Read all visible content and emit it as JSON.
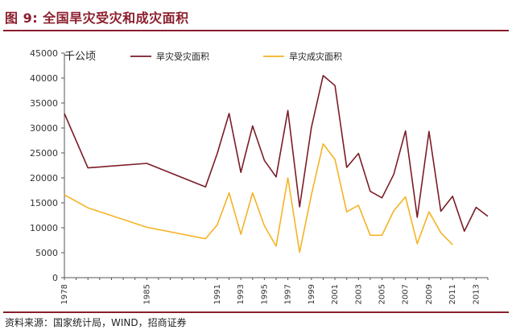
{
  "figure": {
    "title": "图 9:  全国旱灾受灾和成灾面积",
    "source": "资料来源：国家统计局，WIND，招商证券",
    "line_color": "#8b1e2d"
  },
  "chart_data": {
    "type": "line",
    "unit_label": "千公顷",
    "ylim": [
      0,
      45000
    ],
    "yticks": [
      0,
      5000,
      10000,
      15000,
      20000,
      25000,
      30000,
      35000,
      40000,
      45000
    ],
    "x_tick_labels": [
      "1978",
      "1985",
      "1991",
      "1993",
      "1995",
      "1997",
      "1999",
      "2001",
      "2003",
      "2005",
      "2007",
      "2009",
      "2011",
      "2013"
    ],
    "categories": [
      "1978",
      "1980",
      "1985",
      "1990",
      "1991",
      "1992",
      "1993",
      "1994",
      "1995",
      "1996",
      "1997",
      "1998",
      "1999",
      "2000",
      "2001",
      "2002",
      "2003",
      "2004",
      "2005",
      "2006",
      "2007",
      "2008",
      "2009",
      "2010",
      "2011",
      "2012",
      "2013",
      "2014"
    ],
    "legend_position": "top",
    "grid": false,
    "series": [
      {
        "name": "旱灾受灾面积",
        "color": "#7b1c28",
        "values": [
          32900,
          22000,
          22900,
          18200,
          24900,
          32900,
          21100,
          30400,
          23500,
          20200,
          33500,
          14200,
          30100,
          40500,
          38500,
          22100,
          24900,
          17300,
          16000,
          20700,
          29400,
          12100,
          29300,
          13300,
          16300,
          9300,
          14100,
          12300
        ]
      },
      {
        "name": "旱灾成灾面积",
        "color": "#f5b324",
        "values": [
          16600,
          14000,
          10100,
          7800,
          10600,
          17000,
          8700,
          17000,
          10400,
          6300,
          20000,
          5100,
          16600,
          26800,
          23700,
          13200,
          14500,
          8500,
          8500,
          13400,
          16200,
          6800,
          13200,
          9000,
          6600,
          null,
          null,
          null
        ]
      }
    ]
  }
}
